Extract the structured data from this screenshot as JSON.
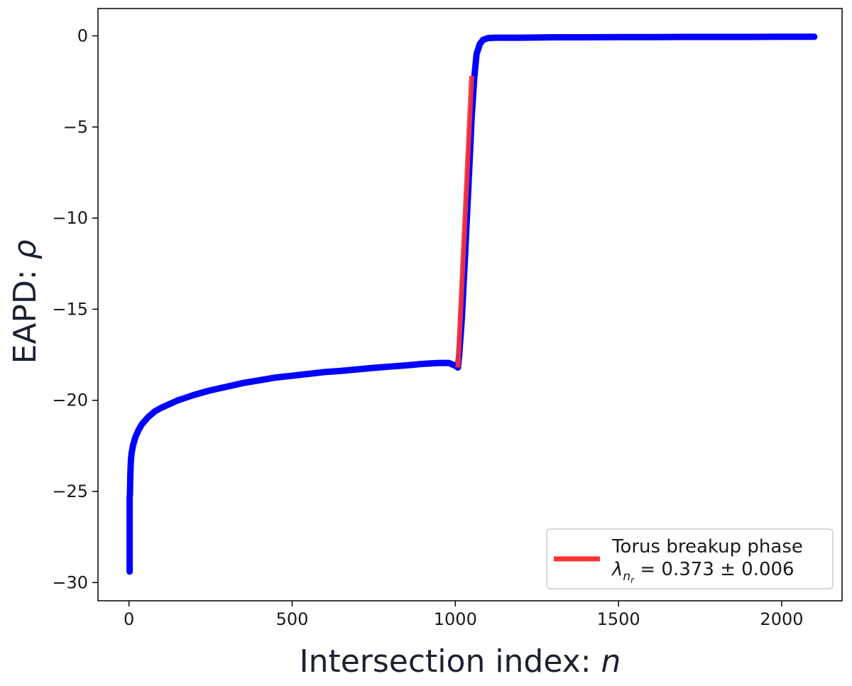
{
  "chart_data": {
    "type": "scatter",
    "title": "",
    "xlabel": "Intersection index: ",
    "xlabel_symbol": "n",
    "ylabel": "EAPD: ",
    "ylabel_symbol": "ρ",
    "xlim": [
      -95,
      2185
    ],
    "ylim": [
      -31,
      1.5
    ],
    "x_ticks": [
      0,
      500,
      1000,
      1500,
      2000
    ],
    "x_tick_labels": [
      "0",
      "500",
      "1000",
      "1500",
      "2000"
    ],
    "y_ticks": [
      0,
      -5,
      -10,
      -15,
      -20,
      -25,
      -30
    ],
    "y_tick_labels": [
      "0",
      "−5",
      "−10",
      "−15",
      "−20",
      "−25",
      "−30"
    ],
    "grid": false,
    "legend_position": "bottom-right",
    "series": [
      {
        "name": "",
        "type": "scatter-line",
        "color": "#0000ff",
        "x": [
          2,
          2,
          3,
          4,
          5,
          6,
          8,
          10,
          12,
          15,
          20,
          30,
          40,
          60,
          80,
          100,
          150,
          200,
          250,
          300,
          350,
          400,
          450,
          500,
          550,
          600,
          650,
          700,
          750,
          800,
          850,
          900,
          950,
          980,
          1000,
          1008,
          1012,
          1020,
          1030,
          1040,
          1050,
          1058,
          1065,
          1075,
          1085,
          1100,
          1120,
          1150,
          1200,
          1300,
          1400,
          1500,
          1600,
          1700,
          1800,
          1900,
          2000,
          2100
        ],
        "y": [
          -29.4,
          -25.3,
          -25.2,
          -24.2,
          -23.6,
          -23.3,
          -22.9,
          -22.7,
          -22.5,
          -22.3,
          -22.0,
          -21.6,
          -21.3,
          -20.9,
          -20.6,
          -20.4,
          -20.0,
          -19.7,
          -19.45,
          -19.25,
          -19.05,
          -18.9,
          -18.75,
          -18.65,
          -18.55,
          -18.45,
          -18.38,
          -18.3,
          -18.22,
          -18.15,
          -18.08,
          -18.0,
          -17.95,
          -17.95,
          -18.1,
          -18.2,
          -17.5,
          -15.5,
          -12.0,
          -8.3,
          -4.5,
          -2.3,
          -1.0,
          -0.45,
          -0.22,
          -0.12,
          -0.1,
          -0.1,
          -0.1,
          -0.08,
          -0.08,
          -0.07,
          -0.07,
          -0.06,
          -0.06,
          -0.06,
          -0.05,
          -0.05
        ]
      },
      {
        "name": "Torus breakup phase",
        "type": "line",
        "color": "#ff3333",
        "x": [
          1008,
          1050
        ],
        "y": [
          -18.2,
          -2.2
        ]
      }
    ],
    "legend": {
      "line1": "Torus breakup phase",
      "line2_symbol": "λ",
      "line2_sub": "n",
      "line2_subsub": "r",
      "line2_rest": " = 0.373 ± 0.006"
    }
  }
}
